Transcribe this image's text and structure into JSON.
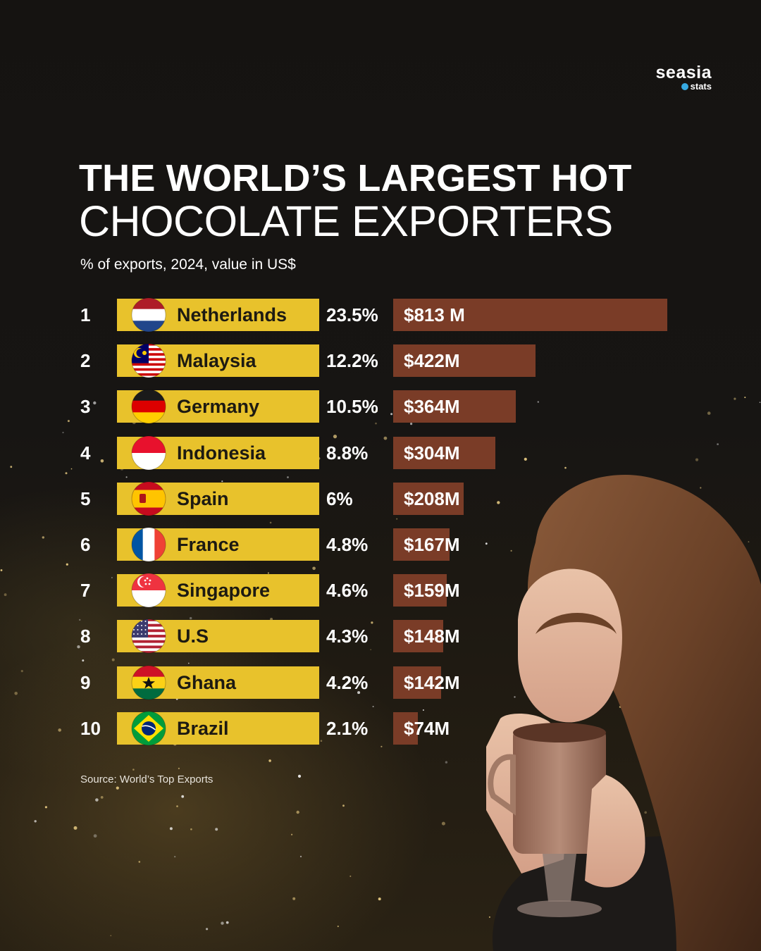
{
  "logo": {
    "brand": "seasia",
    "sub": "stats"
  },
  "header": {
    "title_line1": "THE WORLD’S LARGEST HOT",
    "title_line2": "CHOCOLATE EXPORTERS",
    "subtitle": "% of exports, 2024, value in US$"
  },
  "footer": {
    "source": "Source: World’s Top Exports"
  },
  "colors": {
    "country_box": "#e8c22c",
    "bar": "#7a3c27",
    "background": "#141210",
    "text": "#ffffff"
  },
  "chart_data": {
    "type": "bar",
    "orientation": "horizontal",
    "title": "THE WORLD’S LARGEST HOT CHOCOLATE EXPORTERS",
    "subtitle": "% of exports, 2024, value in US$",
    "grid": false,
    "legend": "none",
    "unit": "US$ millions",
    "rows": [
      {
        "rank": "1",
        "country": "Netherlands",
        "flag": "netherlands-flag-icon",
        "pct": "23.5%",
        "label": "$813 M",
        "value": 813
      },
      {
        "rank": "2",
        "country": "Malaysia",
        "flag": "malaysia-flag-icon",
        "pct": "12.2%",
        "label": "$422M",
        "value": 422
      },
      {
        "rank": "3",
        "country": "Germany",
        "flag": "germany-flag-icon",
        "pct": "10.5%",
        "label": "$364M",
        "value": 364
      },
      {
        "rank": "4",
        "country": "Indonesia",
        "flag": "indonesia-flag-icon",
        "pct": "8.8%",
        "label": "$304M",
        "value": 304
      },
      {
        "rank": "5",
        "country": "Spain",
        "flag": "spain-flag-icon",
        "pct": "6%",
        "label": "$208M",
        "value": 208
      },
      {
        "rank": "6",
        "country": "France",
        "flag": "france-flag-icon",
        "pct": "4.8%",
        "label": "$167M",
        "value": 167
      },
      {
        "rank": "7",
        "country": "Singapore",
        "flag": "singapore-flag-icon",
        "pct": "4.6%",
        "label": "$159M",
        "value": 159
      },
      {
        "rank": "8",
        "country": "U.S",
        "flag": "usa-flag-icon",
        "pct": "4.3%",
        "label": "$148M",
        "value": 148
      },
      {
        "rank": "9",
        "country": "Ghana",
        "flag": "ghana-flag-icon",
        "pct": "4.2%",
        "label": "$142M",
        "value": 142
      },
      {
        "rank": "10",
        "country": "Brazil",
        "flag": "brazil-flag-icon",
        "pct": "2.1%",
        "label": "$74M",
        "value": 74
      }
    ]
  }
}
